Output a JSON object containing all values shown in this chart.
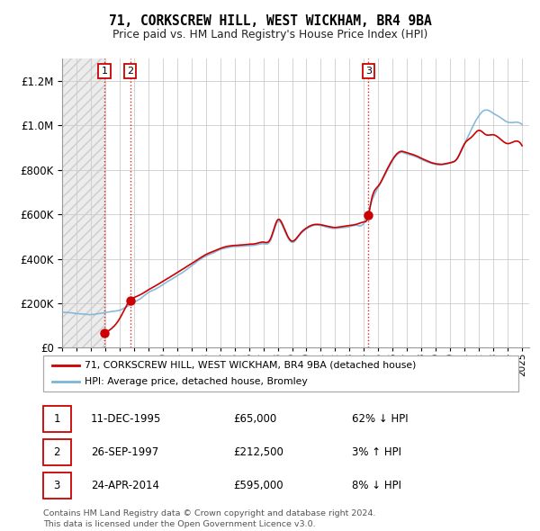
{
  "title": "71, CORKSCREW HILL, WEST WICKHAM, BR4 9BA",
  "subtitle": "Price paid vs. HM Land Registry's House Price Index (HPI)",
  "legend_line1": "71, CORKSCREW HILL, WEST WICKHAM, BR4 9BA (detached house)",
  "legend_line2": "HPI: Average price, detached house, Bromley",
  "footer1": "Contains HM Land Registry data © Crown copyright and database right 2024.",
  "footer2": "This data is licensed under the Open Government Licence v3.0.",
  "transactions": [
    {
      "num": 1,
      "date": "11-DEC-1995",
      "price": 65000,
      "pct": "62% ↓ HPI",
      "year": 1995.95
    },
    {
      "num": 2,
      "date": "26-SEP-1997",
      "price": 212500,
      "pct": "3% ↑ HPI",
      "year": 1997.73
    },
    {
      "num": 3,
      "date": "24-APR-2014",
      "price": 595000,
      "pct": "8% ↓ HPI",
      "year": 2014.31
    }
  ],
  "hpi_color": "#7ab4d8",
  "price_color": "#cc0000",
  "vline_color": "#cc0000",
  "grid_color": "#cccccc",
  "ylim": [
    0,
    1300000
  ],
  "yticks": [
    0,
    200000,
    400000,
    600000,
    800000,
    1000000,
    1200000
  ],
  "xlim_start": 1993.0,
  "xlim_end": 2025.5,
  "xticks": [
    1993,
    1994,
    1995,
    1996,
    1997,
    1998,
    1999,
    2000,
    2001,
    2002,
    2003,
    2004,
    2005,
    2006,
    2007,
    2008,
    2009,
    2010,
    2011,
    2012,
    2013,
    2014,
    2015,
    2016,
    2017,
    2018,
    2019,
    2020,
    2021,
    2022,
    2023,
    2024,
    2025
  ],
  "hpi_data": {
    "x": [
      1993.0,
      1993.5,
      1994.0,
      1994.5,
      1995.0,
      1995.5,
      1996.0,
      1996.5,
      1997.0,
      1997.5,
      1998.0,
      1998.5,
      1999.0,
      1999.5,
      2000.0,
      2000.5,
      2001.0,
      2001.5,
      2002.0,
      2002.5,
      2003.0,
      2003.5,
      2004.0,
      2004.5,
      2005.0,
      2005.5,
      2006.0,
      2006.5,
      2007.0,
      2007.5,
      2008.0,
      2008.5,
      2009.0,
      2009.5,
      2010.0,
      2010.5,
      2011.0,
      2011.5,
      2012.0,
      2012.5,
      2013.0,
      2013.5,
      2014.0,
      2014.5,
      2015.0,
      2015.5,
      2016.0,
      2016.5,
      2017.0,
      2017.5,
      2018.0,
      2018.5,
      2019.0,
      2019.5,
      2020.0,
      2020.5,
      2021.0,
      2021.5,
      2022.0,
      2022.5,
      2023.0,
      2023.5,
      2024.0,
      2024.5,
      2025.0
    ],
    "y": [
      160000,
      158000,
      155000,
      152000,
      150000,
      153000,
      158000,
      163000,
      170000,
      185000,
      205000,
      225000,
      250000,
      265000,
      285000,
      305000,
      325000,
      345000,
      370000,
      395000,
      415000,
      430000,
      445000,
      455000,
      460000,
      462000,
      465000,
      468000,
      475000,
      490000,
      575000,
      530000,
      480000,
      510000,
      540000,
      555000,
      555000,
      548000,
      543000,
      547000,
      552000,
      558000,
      568000,
      660000,
      730000,
      790000,
      850000,
      885000,
      880000,
      870000,
      855000,
      840000,
      830000,
      828000,
      835000,
      855000,
      920000,
      990000,
      1050000,
      1075000,
      1060000,
      1040000,
      1020000,
      1020000,
      1010000
    ]
  },
  "price_data": {
    "x": [
      1995.95,
      1996.2,
      1996.5,
      1997.0,
      1997.73,
      1998.0,
      1998.5,
      1999.0,
      1999.5,
      2000.0,
      2000.5,
      2001.0,
      2001.5,
      2002.0,
      2002.5,
      2003.0,
      2003.5,
      2004.0,
      2004.5,
      2005.0,
      2005.5,
      2006.0,
      2006.5,
      2007.0,
      2007.5,
      2008.0,
      2008.5,
      2009.0,
      2009.5,
      2010.0,
      2010.5,
      2011.0,
      2011.5,
      2012.0,
      2012.5,
      2013.0,
      2013.5,
      2014.0,
      2014.31,
      2014.5,
      2015.0,
      2015.5,
      2016.0,
      2016.5,
      2017.0,
      2017.5,
      2018.0,
      2018.5,
      2019.0,
      2019.5,
      2020.0,
      2020.5,
      2021.0,
      2021.5,
      2022.0,
      2022.5,
      2023.0,
      2023.5,
      2024.0,
      2024.5,
      2025.0
    ],
    "y": [
      65000,
      75000,
      90000,
      130000,
      212500,
      225000,
      240000,
      260000,
      278000,
      298000,
      318000,
      338000,
      358000,
      378000,
      398000,
      418000,
      432000,
      446000,
      456000,
      460000,
      462000,
      465000,
      468000,
      475000,
      490000,
      575000,
      530000,
      480000,
      510000,
      540000,
      555000,
      555000,
      548000,
      543000,
      547000,
      552000,
      558000,
      568000,
      595000,
      660000,
      730000,
      790000,
      850000,
      885000,
      880000,
      870000,
      855000,
      840000,
      830000,
      828000,
      835000,
      855000,
      920000,
      950000,
      980000,
      960000,
      960000,
      940000,
      920000,
      930000,
      910000
    ]
  }
}
